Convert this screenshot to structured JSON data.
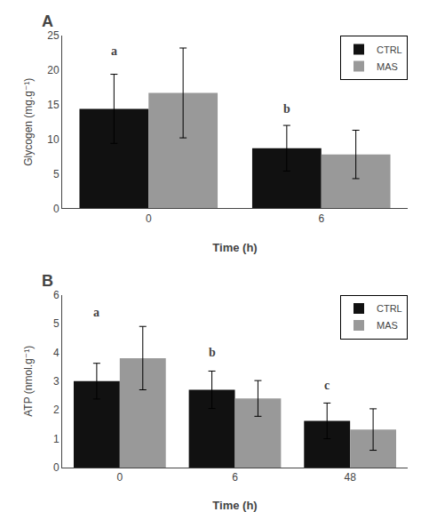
{
  "chart_data": [
    {
      "type": "bar",
      "title": "A",
      "xlabel": "Time (h)",
      "ylabel": "Glycogen (mg.g⁻¹)",
      "categories": [
        "0",
        "6"
      ],
      "series": [
        {
          "name": "CTRL",
          "color": "#111111",
          "values": [
            14.4,
            8.7
          ],
          "errors": [
            5.0,
            3.3
          ]
        },
        {
          "name": "MAS",
          "color": "#999999",
          "values": [
            16.7,
            7.8
          ],
          "errors": [
            6.5,
            3.5
          ]
        }
      ],
      "ylim": [
        0,
        25
      ],
      "yticks": [
        0,
        5,
        10,
        15,
        20,
        25
      ],
      "grid": false,
      "legend": "upper right",
      "annotations": [
        {
          "text": "a",
          "category": "0",
          "y": 21.5
        },
        {
          "text": "b",
          "category": "6",
          "y": 13.2
        }
      ]
    },
    {
      "type": "bar",
      "title": "B",
      "xlabel": "Time (h)",
      "ylabel": "ATP (nmol.g⁻¹)",
      "categories": [
        "0",
        "6",
        "48"
      ],
      "series": [
        {
          "name": "CTRL",
          "color": "#111111",
          "values": [
            3.0,
            2.7,
            1.62
          ],
          "errors": [
            0.62,
            0.65,
            0.62
          ]
        },
        {
          "name": "MAS",
          "color": "#999999",
          "values": [
            3.8,
            2.4,
            1.32
          ],
          "errors": [
            1.1,
            0.62,
            0.72
          ]
        }
      ],
      "ylim": [
        0,
        6
      ],
      "yticks": [
        0,
        1,
        2,
        3,
        4,
        5,
        6
      ],
      "grid": false,
      "legend": "upper right",
      "annotations": [
        {
          "text": "a",
          "category": "0",
          "y": 5.1
        },
        {
          "text": "b",
          "category": "6",
          "y": 3.7
        },
        {
          "text": "c",
          "category": "48",
          "y": 2.55
        }
      ]
    }
  ]
}
